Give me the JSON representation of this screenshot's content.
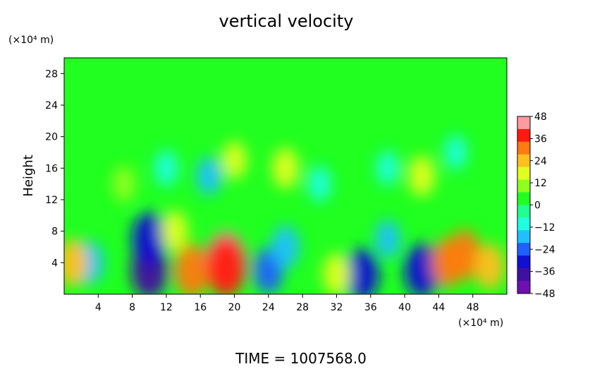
{
  "chart_data": {
    "type": "heatmap",
    "title": "vertical velocity",
    "ylabel": "Height",
    "xunit": "(×10⁴ m)",
    "yunit": "(×10⁴ m)",
    "footer": "TIME  =  1007568.0",
    "xlim": [
      0,
      52
    ],
    "ylim": [
      0,
      30
    ],
    "xticks": [
      4,
      8,
      12,
      16,
      20,
      24,
      28,
      32,
      36,
      40,
      44,
      48
    ],
    "yticks": [
      4,
      8,
      12,
      16,
      20,
      24,
      28
    ],
    "colorbar": {
      "range": [
        -48,
        48
      ],
      "ticks": [
        48,
        36,
        24,
        12,
        0,
        -12,
        -24,
        -36,
        -48
      ],
      "colors": [
        "#ff9aa0",
        "#ff1a10",
        "#ff7a10",
        "#ffc020",
        "#e0ff20",
        "#90ff20",
        "#20ff20",
        "#20ff90",
        "#20ffe0",
        "#20c0ff",
        "#2060ff",
        "#1010d0",
        "#4010a0",
        "#7010b0"
      ]
    },
    "background_value": 0,
    "features": [
      {
        "x": 3,
        "y": 4,
        "value": -22
      },
      {
        "x": 1,
        "y": 4,
        "value": 28
      },
      {
        "x": 10,
        "y": 3,
        "value": -40
      },
      {
        "x": 10,
        "y": 7,
        "value": -36
      },
      {
        "x": 15,
        "y": 3,
        "value": 36
      },
      {
        "x": 19,
        "y": 4,
        "value": 48
      },
      {
        "x": 19,
        "y": 3.5,
        "value": 44
      },
      {
        "x": 24,
        "y": 3,
        "value": -26
      },
      {
        "x": 26,
        "y": 6,
        "value": -22
      },
      {
        "x": 13,
        "y": 8,
        "value": 20
      },
      {
        "x": 35,
        "y": 2.5,
        "value": -34
      },
      {
        "x": 42,
        "y": 3,
        "value": -36
      },
      {
        "x": 45,
        "y": 4,
        "value": 30
      },
      {
        "x": 47,
        "y": 5,
        "value": 32
      },
      {
        "x": 50,
        "y": 3.5,
        "value": 26
      },
      {
        "x": 32,
        "y": 2.5,
        "value": 22
      },
      {
        "x": 38,
        "y": 7,
        "value": -16
      },
      {
        "x": 17,
        "y": 15,
        "value": -16
      },
      {
        "x": 26,
        "y": 16,
        "value": 20
      },
      {
        "x": 38,
        "y": 16,
        "value": -12
      },
      {
        "x": 42,
        "y": 15,
        "value": 20
      },
      {
        "x": 30,
        "y": 14,
        "value": -14
      },
      {
        "x": 20,
        "y": 17,
        "value": 16
      },
      {
        "x": 12,
        "y": 16,
        "value": -14
      },
      {
        "x": 46,
        "y": 18,
        "value": -12
      },
      {
        "x": 7,
        "y": 14,
        "value": 14
      }
    ]
  }
}
